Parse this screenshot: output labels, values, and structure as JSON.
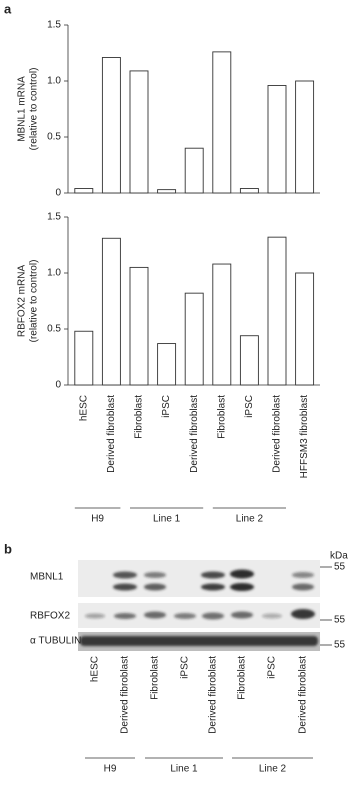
{
  "chart_data": [
    {
      "type": "bar",
      "panel": "a",
      "ylabel": [
        "MBNL1 mRNA",
        "(relative to control)"
      ],
      "values": [
        0.04,
        1.21,
        1.09,
        0.03,
        0.4,
        1.26,
        0.04,
        0.96,
        1.0
      ],
      "color": "#ffffff",
      "edgecolor": "#333333",
      "ylim": [
        0,
        1.5
      ],
      "yticks": [
        0,
        0.5,
        {
          "value": 1,
          "label": "1.0"
        },
        1.5
      ]
    },
    {
      "type": "bar",
      "ylabel": [
        "RBFOX2 mRNA",
        "(relative to control)"
      ],
      "categories": [
        "hESC",
        "Derived fibroblast",
        "Fibroblast",
        "iPSC",
        "Derived fibroblast",
        "Fibroblast",
        "iPSC",
        "Derived fibroblast",
        "HFFSM3 fibroblast"
      ],
      "groups": [
        {
          "label": "H9",
          "count": 2
        },
        {
          "label": "Line 1",
          "count": 3
        },
        {
          "label": "Line 2",
          "count": 3
        }
      ],
      "values": [
        0.48,
        1.31,
        1.05,
        0.37,
        0.82,
        1.08,
        0.44,
        1.32,
        1.0
      ],
      "color": "#ffffff",
      "edgecolor": "#333333",
      "ylim": [
        0,
        1.5
      ],
      "yticks": [
        0,
        0.5,
        {
          "value": 1,
          "label": "1.0"
        },
        1.5
      ]
    }
  ],
  "blot": {
    "panel": "b",
    "unit": "kDa",
    "rows": [
      {
        "name": "MBNL1",
        "marker": 55
      },
      {
        "name": "RBFOX2",
        "marker": 55
      },
      {
        "name": "α TUBULIN",
        "marker": 55
      }
    ],
    "lanes": [
      "hESC",
      "Derived fibroblast",
      "Fibroblast",
      "iPSC",
      "Derived fibroblast",
      "Fibroblast",
      "iPSC",
      "Derived fibroblast"
    ],
    "groups": [
      {
        "label": "H9",
        "count": 2
      },
      {
        "label": "Line 1",
        "count": 3
      },
      {
        "label": "Line 2",
        "count": 3
      }
    ]
  }
}
